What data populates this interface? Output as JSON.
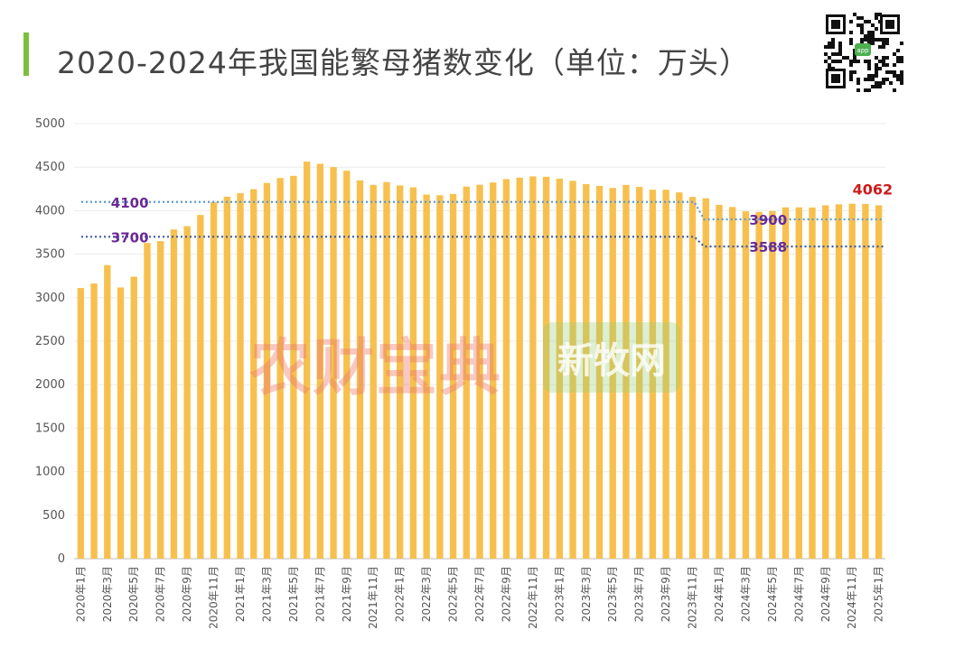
{
  "header": {
    "title": "2020-2024年我国能繁母猪数变化（单位：万头）",
    "accent_color": "#7dbf3c"
  },
  "qr_code": {
    "label": "app"
  },
  "watermarks": {
    "left_text": "农财宝典",
    "right_text": "新牧网"
  },
  "chart_data": {
    "type": "bar",
    "ylim": [
      0,
      5000
    ],
    "yticks": [
      0,
      500,
      1000,
      1500,
      2000,
      2500,
      3000,
      3500,
      4000,
      4500,
      5000
    ],
    "grid": true,
    "bar_color": "#f7c04e",
    "categories": [
      "2020年1月",
      "2020年2月",
      "2020年3月",
      "2020年4月",
      "2020年5月",
      "2020年6月",
      "2020年7月",
      "2020年8月",
      "2020年9月",
      "2020年10月",
      "2020年11月",
      "2020年12月",
      "2021年1月",
      "2021年2月",
      "2021年3月",
      "2021年4月",
      "2021年5月",
      "2021年6月",
      "2021年7月",
      "2021年8月",
      "2021年9月",
      "2021年10月",
      "2021年11月",
      "2021年12月",
      "2022年1月",
      "2022年2月",
      "2022年3月",
      "2022年4月",
      "2022年5月",
      "2022年6月",
      "2022年7月",
      "2022年8月",
      "2022年9月",
      "2022年10月",
      "2022年11月",
      "2022年12月",
      "2023年1月",
      "2023年2月",
      "2023年3月",
      "2023年4月",
      "2023年5月",
      "2023年6月",
      "2023年7月",
      "2023年8月",
      "2023年9月",
      "2023年10月",
      "2023年11月",
      "2023年12月",
      "2024年1月",
      "2024年2月",
      "2024年3月",
      "2024年4月",
      "2024年5月",
      "2024年6月",
      "2024年7月",
      "2024年8月",
      "2024年9月",
      "2024年10月",
      "2024年11月",
      "2024年12月",
      "2025年1月"
    ],
    "tick_labels": [
      "2020年1月",
      "2020年3月",
      "2020年5月",
      "2020年7月",
      "2020年9月",
      "2020年11月",
      "2021年1月",
      "2021年3月",
      "2021年5月",
      "2021年7月",
      "2021年9月",
      "2021年11月",
      "2022年1月",
      "2022年3月",
      "2022年5月",
      "2022年7月",
      "2022年9月",
      "2022年11月",
      "2023年1月",
      "2023年3月",
      "2023年5月",
      "2023年7月",
      "2023年9月",
      "2023年11月",
      "2024年1月",
      "2024年3月",
      "2024年5月",
      "2024年7月",
      "2024年9月",
      "2024年11月",
      "2025年1月"
    ],
    "values": [
      3111,
      3163,
      3374,
      3117,
      3241,
      3629,
      3650,
      3784,
      3822,
      3950,
      4097,
      4161,
      4202,
      4247,
      4318,
      4375,
      4400,
      4564,
      4539,
      4500,
      4459,
      4348,
      4296,
      4329,
      4290,
      4268,
      4185,
      4177,
      4192,
      4277,
      4298,
      4324,
      4362,
      4379,
      4394,
      4390,
      4367,
      4343,
      4305,
      4284,
      4261,
      4296,
      4273,
      4241,
      4240,
      4210,
      4158,
      4142,
      4067,
      4042,
      3992,
      3986,
      3996,
      4038,
      4038,
      4036,
      4062,
      4073,
      4080,
      4078,
      4062
    ],
    "reference_lines": [
      {
        "label": "4100",
        "value": 4100,
        "color": "#5b9bd5"
      },
      {
        "label": "3700",
        "value": 3700,
        "color": "#3b5ba5"
      }
    ],
    "adjusted_lines": [
      {
        "label": "3900",
        "from": 4100,
        "to": 3900,
        "color": "#5b9bd5"
      },
      {
        "label": "3588",
        "from": 3700,
        "to": 3588,
        "color": "#3b5ba5"
      }
    ],
    "last_value_label": "4062"
  }
}
